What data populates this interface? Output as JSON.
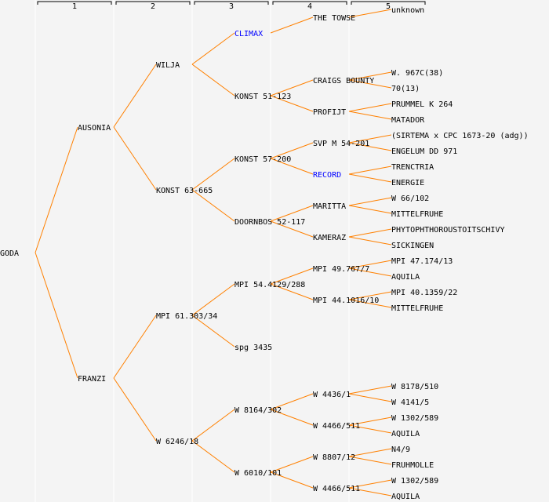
{
  "generation_headers": [
    "1",
    "2",
    "3",
    "4",
    "5"
  ],
  "colors": {
    "line": "#ff8000",
    "highlight": "#0000ff",
    "text": "#000000",
    "background": "#f4f4f4"
  },
  "pedigree": {
    "name": "GODA",
    "sire": {
      "name": "AUSONIA",
      "sire": {
        "name": "WILJA",
        "sire": {
          "name": "CLIMAX",
          "highlight": true,
          "sire": {
            "name": "THE TOWSE",
            "sire": {
              "name": "unknown"
            }
          }
        },
        "dam": {
          "name": "KONST 51-123",
          "sire": {
            "name": "CRAIGS BOUNTY",
            "sire": {
              "name": "W. 967C(38)"
            },
            "dam": {
              "name": "70(13)"
            }
          },
          "dam": {
            "name": "PROFIJT",
            "sire": {
              "name": "PRUMMEL K 264"
            },
            "dam": {
              "name": "MATADOR"
            }
          }
        }
      },
      "dam": {
        "name": "KONST 63-665",
        "sire": {
          "name": "KONST 57-200",
          "sire": {
            "name": "SVP M 54-201",
            "sire": {
              "name": "(SIRTEMA x CPC 1673-20 (adg))"
            },
            "dam": {
              "name": "ENGELUM DD 971"
            }
          },
          "dam": {
            "name": "RECORD",
            "highlight": true,
            "sire": {
              "name": "TRENCTRIA"
            },
            "dam": {
              "name": "ENERGIE"
            }
          }
        },
        "dam": {
          "name": "DOORNBOS 52-117",
          "sire": {
            "name": "MARITTA",
            "sire": {
              "name": "W 66/102"
            },
            "dam": {
              "name": "MITTELFRUHE"
            }
          },
          "dam": {
            "name": "KAMERAZ",
            "sire": {
              "name": "PHYTOPHTHOROUSTOITSCHIVY"
            },
            "dam": {
              "name": "SICKINGEN"
            }
          }
        }
      }
    },
    "dam": {
      "name": "FRANZI",
      "sire": {
        "name": "MPI 61.303/34",
        "sire": {
          "name": "MPI 54.4129/288",
          "sire": {
            "name": "MPI 49.767/7",
            "sire": {
              "name": "MPI 47.174/13"
            },
            "dam": {
              "name": "AQUILA"
            }
          },
          "dam": {
            "name": "MPI 44.1016/10",
            "sire": {
              "name": "MPI 40.1359/22"
            },
            "dam": {
              "name": "MITTELFRUHE"
            }
          }
        },
        "dam": {
          "name": "spg 3435"
        }
      },
      "dam": {
        "name": "W 6246/18",
        "sire": {
          "name": "W 8164/302",
          "sire": {
            "name": "W 4436/1",
            "sire": {
              "name": "W 8178/510"
            },
            "dam": {
              "name": "W 4141/5"
            }
          },
          "dam": {
            "name": "W 4466/511",
            "sire": {
              "name": "W 1302/589"
            },
            "dam": {
              "name": "AQUILA"
            }
          }
        },
        "dam": {
          "name": "W 6010/101",
          "sire": {
            "name": "W 8807/12",
            "sire": {
              "name": "N4/9"
            },
            "dam": {
              "name": "FRUHMOLLE"
            }
          },
          "dam": {
            "name": "W 4466/511",
            "sire": {
              "name": "W 1302/589"
            },
            "dam": {
              "name": "AQUILA"
            }
          }
        }
      }
    }
  }
}
